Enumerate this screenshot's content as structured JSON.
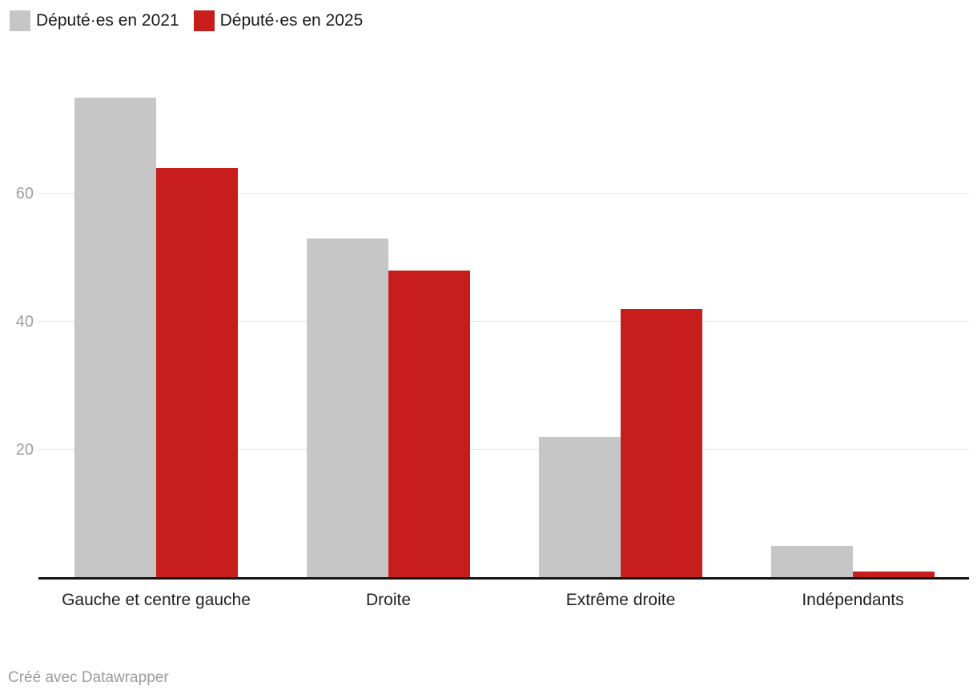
{
  "legend": {
    "items": [
      {
        "label": "Député·es en 2021",
        "color": "#c6c6c6"
      },
      {
        "label": "Député·es en 2025",
        "color": "#c71e1d"
      }
    ]
  },
  "footer": {
    "attribution": "Créé avec Datawrapper"
  },
  "chart_data": {
    "type": "bar",
    "title": "",
    "xlabel": "",
    "ylabel": "",
    "categories": [
      "Gauche et centre gauche",
      "Droite",
      "Extrême droite",
      "Indépendants"
    ],
    "series": [
      {
        "name": "Député·es en 2021",
        "color": "#c6c6c6",
        "values": [
          75,
          53,
          22,
          5
        ]
      },
      {
        "name": "Député·es en 2025",
        "color": "#c71e1d",
        "values": [
          64,
          48,
          42,
          1
        ]
      }
    ],
    "yticks": [
      20,
      40,
      60
    ],
    "ylim": [
      0,
      75
    ],
    "grid": true,
    "legend_position": "top-left",
    "gridline_color": "#e8e8e8",
    "axis_line_color": "#141414",
    "tick_label_color": "#9e9e9e"
  }
}
